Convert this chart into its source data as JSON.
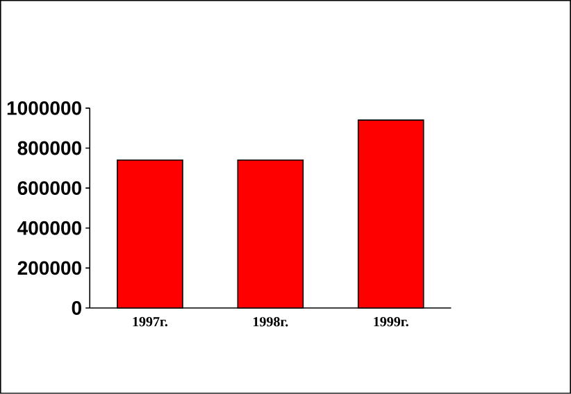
{
  "chart_data": {
    "type": "bar",
    "categories": [
      "1997г.",
      "1998г.",
      "1999г."
    ],
    "values": [
      740000,
      740000,
      940000
    ],
    "color": "#ff0000",
    "ylim": [
      0,
      1000000
    ],
    "yticks": [
      0,
      200000,
      400000,
      600000,
      800000,
      1000000
    ]
  }
}
